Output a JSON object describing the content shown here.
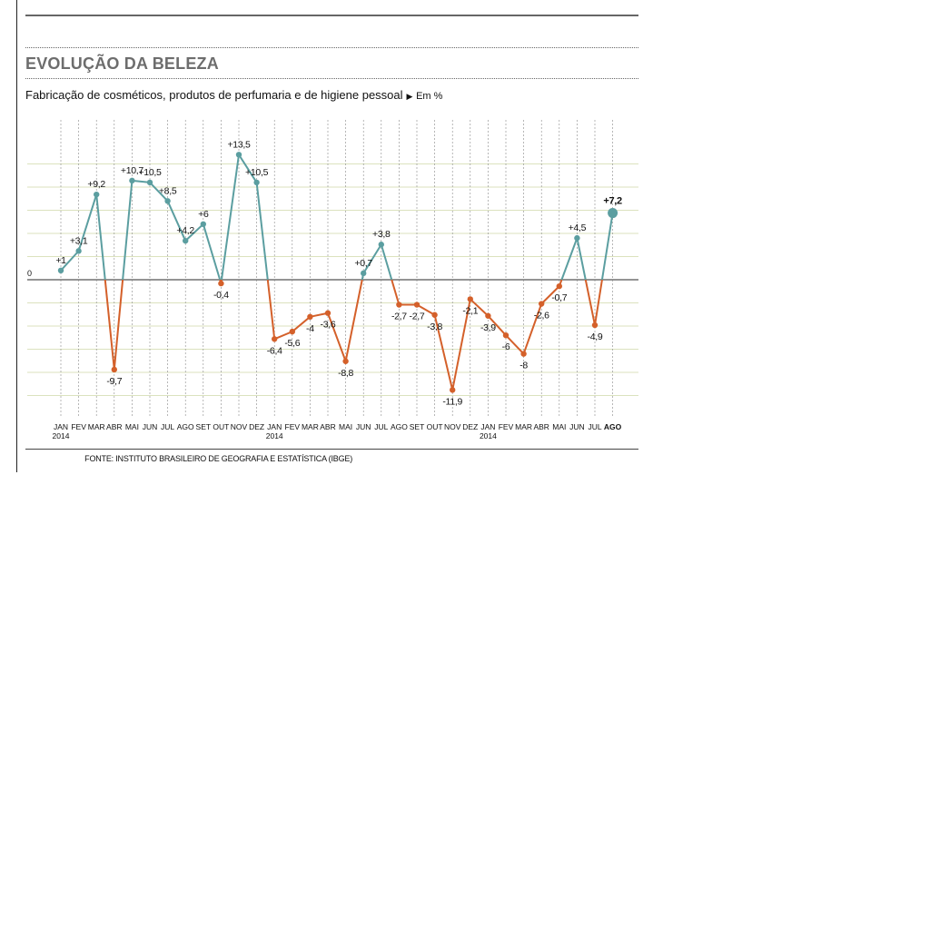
{
  "header": {
    "title": "EVOLUÇÃO DA BELEZA",
    "subtitle": "Fabricação de cosméticos, produtos de perfumaria e de higiene pessoal",
    "unit": "Em %"
  },
  "footer": {
    "source": "FONTE: INSTITUTO BRASILEIRO DE GEOGRAFIA E ESTATÍSTICA (IBGE)"
  },
  "colors": {
    "positive": "#5b9ea0",
    "negative": "#d4602a",
    "grid": "#cfd8a8",
    "zero_line": "#555555"
  },
  "chart_data": {
    "type": "line",
    "categories": [
      "JAN",
      "FEV",
      "MAR",
      "ABR",
      "MAI",
      "JUN",
      "JUL",
      "AGO",
      "SET",
      "OUT",
      "NOV",
      "DEZ",
      "JAN",
      "FEV",
      "MAR",
      "ABR",
      "MAI",
      "JUN",
      "JUL",
      "AGO",
      "SET",
      "OUT",
      "NOV",
      "DEZ",
      "JAN",
      "FEV",
      "MAR",
      "ABR",
      "MAI",
      "JUN",
      "JUL",
      "AGO"
    ],
    "year_labels": [
      {
        "index": 0,
        "label": "2014"
      },
      {
        "index": 12,
        "label": "2014"
      },
      {
        "index": 24,
        "label": "2014"
      }
    ],
    "values": [
      1,
      3.1,
      9.2,
      -9.7,
      10.7,
      10.5,
      8.5,
      4.2,
      6,
      -0.4,
      13.5,
      10.5,
      -6.4,
      -5.6,
      -4,
      -3.6,
      -8.8,
      0.7,
      3.8,
      -2.7,
      -2.7,
      -3.8,
      -11.9,
      -2.1,
      -3.9,
      -6,
      -8,
      -2.6,
      -0.7,
      4.5,
      -4.9,
      7.2
    ],
    "value_labels": [
      "+1",
      "+3,1",
      "+9,2",
      "-9,7",
      "+10,7",
      "+10,5",
      "+8,5",
      "+4,2",
      "+6",
      "-0,4",
      "+13,5",
      "+10,5",
      "-6,4",
      "-5,6",
      "-4",
      "-3,6",
      "-8,8",
      "+0,7",
      "+3,8",
      "-2,7",
      "-2,7",
      "-3,8",
      "-11,9",
      "-2,1",
      "-3,9",
      "-6",
      "-8",
      "-2,6",
      "-0,7",
      "+4,5",
      "-4,9",
      "+7,2"
    ],
    "zero_label": "0",
    "highlight_index": 31,
    "ylim": [
      -12,
      15
    ],
    "grid": true
  }
}
